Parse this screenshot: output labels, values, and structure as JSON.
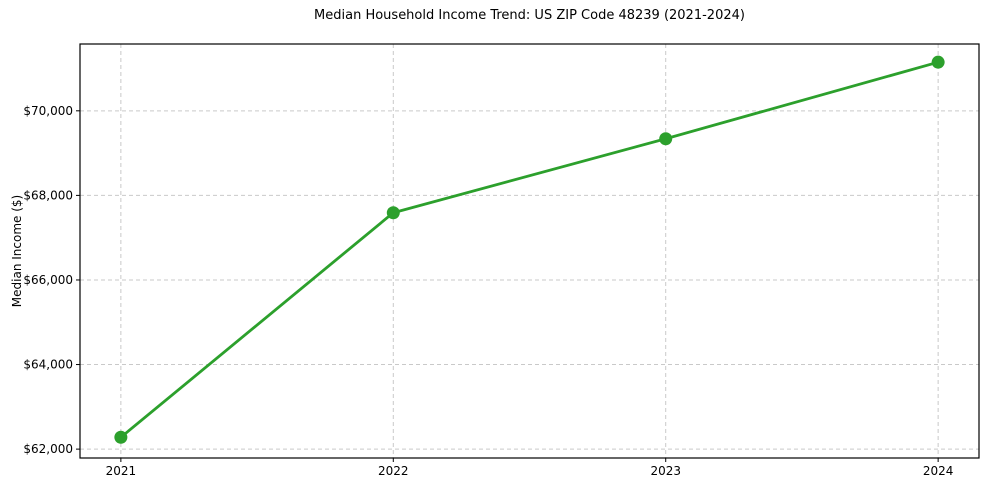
{
  "chart_data": {
    "type": "line",
    "title": "Median Household Income Trend: US ZIP Code 48239 (2021-2024)",
    "xlabel": "",
    "ylabel": "Median Income ($)",
    "x": [
      2021,
      2022,
      2023,
      2024
    ],
    "x_tick_labels": [
      "2021",
      "2022",
      "2023",
      "2024"
    ],
    "series": [
      {
        "name": "Median household income",
        "values": [
          62280,
          67590,
          69340,
          71150
        ],
        "color": "#2ca02c"
      }
    ],
    "y_ticks": [
      62000,
      64000,
      66000,
      68000,
      70000
    ],
    "y_tick_labels": [
      "$62,000",
      "$64,000",
      "$66,000",
      "$68,000",
      "$70,000"
    ],
    "xlim": [
      2020.85,
      2024.15
    ],
    "ylim": [
      61790,
      71580
    ],
    "grid": true,
    "grid_style": "dashed",
    "legend": "none",
    "colors": {
      "line": "#2ca02c",
      "marker": "#2ca02c",
      "grid": "#c9c9c9",
      "spine": "#000000",
      "text": "#000000",
      "background": "#ffffff"
    }
  }
}
